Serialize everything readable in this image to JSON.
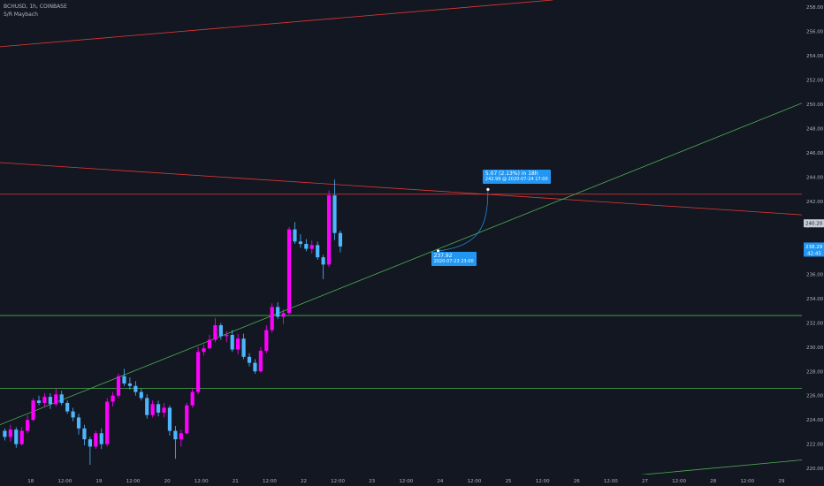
{
  "header": {
    "symbol_line": "BCHUSD, 1h, COINBASE",
    "indicator": "S/R Maybach"
  },
  "colors": {
    "background": "#131722",
    "up_candle": "#ff00ff",
    "down_candle": "#4db6ff",
    "resistance": "#e53935",
    "support": "#4caf50",
    "projection": "#2196f3",
    "axis_text": "#b2b5be"
  },
  "annotations": {
    "forecast_main": "5.07 (2.13%) in 18h",
    "forecast_sub": "242.99 @ 2020-07-24  17:00",
    "origin_price": "237.92",
    "origin_time": "2020-07-23 23:00"
  },
  "chart_data": {
    "type": "candlestick",
    "title": "BCHUSD, 1h, COINBASE",
    "y_axis": {
      "min": 219.5,
      "max": 258.6,
      "ticks": [
        220,
        222,
        224,
        226,
        228,
        230,
        232,
        234,
        236,
        238,
        240,
        242,
        244,
        246,
        248,
        250,
        252,
        254,
        256,
        258
      ],
      "tick_labels": [
        "220.00",
        "222.00",
        "224.00",
        "226.00",
        "228.00",
        "230.00",
        "232.00",
        "234.00",
        "236.00",
        "238.00",
        "240.00",
        "242.00",
        "244.00",
        "246.00",
        "248.00",
        "250.00",
        "252.00",
        "254.00",
        "256.00",
        "258.00"
      ],
      "price_tags": [
        {
          "value": 240.2,
          "label": "240.20",
          "style": "light"
        },
        {
          "value": 238.29,
          "label": "238.29",
          "sub": "42:45",
          "style": "blue"
        }
      ]
    },
    "x_axis": {
      "range": [
        -0.45,
        11.3
      ],
      "ticks": [
        {
          "x": 0,
          "label": "18"
        },
        {
          "x": 0.5,
          "label": "12:00"
        },
        {
          "x": 1,
          "label": "19"
        },
        {
          "x": 1.5,
          "label": "12:00"
        },
        {
          "x": 2,
          "label": "20"
        },
        {
          "x": 2.5,
          "label": "12:00"
        },
        {
          "x": 3,
          "label": "21"
        },
        {
          "x": 3.5,
          "label": "12:00"
        },
        {
          "x": 4,
          "label": "22"
        },
        {
          "x": 4.5,
          "label": "12:00"
        },
        {
          "x": 5,
          "label": "23"
        },
        {
          "x": 5.5,
          "label": "12:00"
        },
        {
          "x": 6,
          "label": "24"
        },
        {
          "x": 6.5,
          "label": "12:00"
        },
        {
          "x": 7,
          "label": "25"
        },
        {
          "x": 7.5,
          "label": "12:00"
        },
        {
          "x": 8,
          "label": "26"
        },
        {
          "x": 8.5,
          "label": "12:00"
        },
        {
          "x": 9,
          "label": "27"
        },
        {
          "x": 9.5,
          "label": "12:00"
        },
        {
          "x": 10,
          "label": "28"
        },
        {
          "x": 10.5,
          "label": "12:00"
        },
        {
          "x": 11,
          "label": "29"
        }
      ]
    },
    "candles": {
      "start_day": -0.38,
      "step_hours": 2,
      "data": [
        [
          223.1,
          223.3,
          222.3,
          222.6
        ],
        [
          222.6,
          223.6,
          222.2,
          223.2
        ],
        [
          223.2,
          223.4,
          221.7,
          222.0
        ],
        [
          222.0,
          223.4,
          221.9,
          223.1
        ],
        [
          223.1,
          224.4,
          222.9,
          224.0
        ],
        [
          224.0,
          225.8,
          223.9,
          225.6
        ],
        [
          225.6,
          226.0,
          225.2,
          225.4
        ],
        [
          225.4,
          226.2,
          225.1,
          225.9
        ],
        [
          225.9,
          226.2,
          224.9,
          225.3
        ],
        [
          225.3,
          226.6,
          225.1,
          226.1
        ],
        [
          226.1,
          226.4,
          225.2,
          225.4
        ],
        [
          225.4,
          225.6,
          224.5,
          224.7
        ],
        [
          224.7,
          225.0,
          223.9,
          224.2
        ],
        [
          224.2,
          224.5,
          222.8,
          223.3
        ],
        [
          223.3,
          223.6,
          221.9,
          222.4
        ],
        [
          222.4,
          222.6,
          220.3,
          221.8
        ],
        [
          221.8,
          223.1,
          221.6,
          222.9
        ],
        [
          222.9,
          223.3,
          221.6,
          222.0
        ],
        [
          222.0,
          225.8,
          221.8,
          225.5
        ],
        [
          225.5,
          226.3,
          225.1,
          226.0
        ],
        [
          226.0,
          227.8,
          225.8,
          227.6
        ],
        [
          227.6,
          228.2,
          226.8,
          227.0
        ],
        [
          227.0,
          227.5,
          226.5,
          226.8
        ],
        [
          226.8,
          227.2,
          226.0,
          226.3
        ],
        [
          226.3,
          226.6,
          225.6,
          225.8
        ],
        [
          225.8,
          226.1,
          224.1,
          224.4
        ],
        [
          224.4,
          225.6,
          224.2,
          225.3
        ],
        [
          225.3,
          225.6,
          224.3,
          224.6
        ],
        [
          224.6,
          225.4,
          224.2,
          225.0
        ],
        [
          225.0,
          225.2,
          222.7,
          223.1
        ],
        [
          223.1,
          223.5,
          220.8,
          222.4
        ],
        [
          222.4,
          223.2,
          221.8,
          222.9
        ],
        [
          222.9,
          225.4,
          222.8,
          225.2
        ],
        [
          225.2,
          226.6,
          225.0,
          226.3
        ],
        [
          226.3,
          230.0,
          226.1,
          229.6
        ],
        [
          229.6,
          230.2,
          229.3,
          229.9
        ],
        [
          229.9,
          231.0,
          229.8,
          230.6
        ],
        [
          230.6,
          232.4,
          230.4,
          231.8
        ],
        [
          231.8,
          232.0,
          230.6,
          230.9
        ],
        [
          230.9,
          231.3,
          230.4,
          231.0
        ],
        [
          231.0,
          231.4,
          229.6,
          229.8
        ],
        [
          229.8,
          231.1,
          229.4,
          230.7
        ],
        [
          230.7,
          231.1,
          229.0,
          229.2
        ],
        [
          229.2,
          229.5,
          228.4,
          228.7
        ],
        [
          228.7,
          229.0,
          227.8,
          228.0
        ],
        [
          228.0,
          230.0,
          227.9,
          229.7
        ],
        [
          229.7,
          231.8,
          229.5,
          231.4
        ],
        [
          231.4,
          233.6,
          231.2,
          233.3
        ],
        [
          233.3,
          233.7,
          232.3,
          232.5
        ],
        [
          232.5,
          233.1,
          231.9,
          232.8
        ],
        [
          232.8,
          239.9,
          232.7,
          239.7
        ],
        [
          239.7,
          240.3,
          238.5,
          238.7
        ],
        [
          238.7,
          239.3,
          238.2,
          238.5
        ],
        [
          238.5,
          238.9,
          237.9,
          238.1
        ],
        [
          238.1,
          238.8,
          237.7,
          238.4
        ],
        [
          238.4,
          238.7,
          237.2,
          237.4
        ],
        [
          237.4,
          237.6,
          235.6,
          236.8
        ],
        [
          236.8,
          242.9,
          236.6,
          242.5
        ],
        [
          242.5,
          243.8,
          238.8,
          239.4
        ],
        [
          239.4,
          239.6,
          237.8,
          238.29
        ]
      ]
    },
    "lines": [
      {
        "name": "",
        "kind": "resistance",
        "x1": -0.45,
        "y1": 254.75,
        "x2": 7.65,
        "y2": 258.6
      },
      {
        "name": "",
        "kind": "resistance",
        "x1": -0.45,
        "y1": 245.2,
        "x2": 11.3,
        "y2": 240.9
      },
      {
        "name": "",
        "kind": "resistance",
        "x1": -0.45,
        "y1": 242.6,
        "x2": 11.3,
        "y2": 242.6
      },
      {
        "name": "",
        "kind": "support",
        "x1": -0.45,
        "y1": 223.6,
        "x2": 11.3,
        "y2": 250.1
      },
      {
        "name": "",
        "kind": "support",
        "x1": -0.45,
        "y1": 232.6,
        "x2": 11.3,
        "y2": 232.6
      },
      {
        "name": "",
        "kind": "support",
        "x1": -0.45,
        "y1": 226.6,
        "x2": 11.3,
        "y2": 226.6
      },
      {
        "name": "",
        "kind": "support",
        "x1": 8.8,
        "y1": 219.4,
        "x2": 11.3,
        "y2": 220.7
      }
    ],
    "projection": {
      "x1": 5.97,
      "y1": 237.92,
      "x2": 6.7,
      "y2": 242.99
    }
  }
}
